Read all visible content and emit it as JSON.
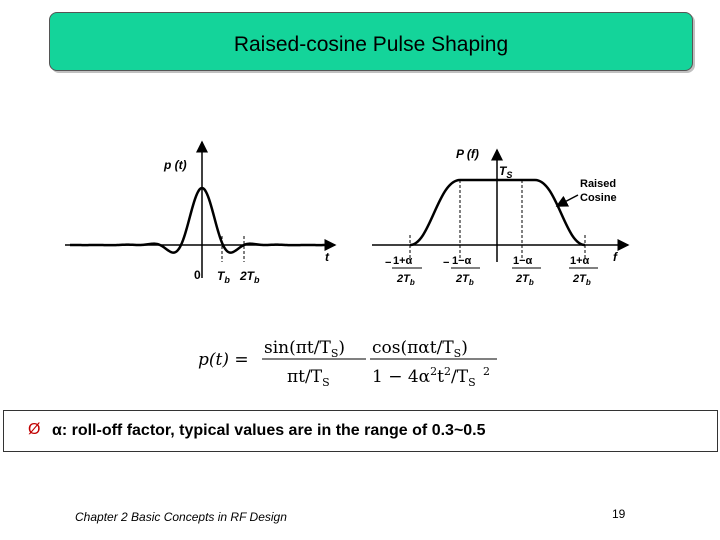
{
  "title": "Raised-cosine Pulse Shaping",
  "time_plot": {
    "ylabel": "p (t)",
    "xlabel": "t",
    "tick_0": "0",
    "tick_tb": "T",
    "tick_tb_sub": "b",
    "tick_2tb": "2T",
    "tick_2tb_sub": "b"
  },
  "freq_plot": {
    "ylabel": "P (f)",
    "xlabel": "f",
    "ts_label": "T",
    "ts_sub": "S",
    "annotation_line1": "Raised",
    "annotation_line2": "Cosine",
    "ticks": [
      {
        "num": "1+α",
        "den": "2T",
        "sub": "b",
        "sign": "−"
      },
      {
        "num": "1−α",
        "den": "2T",
        "sub": "b",
        "sign": "−"
      },
      {
        "num": "1−α",
        "den": "2T",
        "sub": "b",
        "sign": ""
      },
      {
        "num": "1+α",
        "den": "2T",
        "sub": "b",
        "sign": ""
      }
    ]
  },
  "formula": {
    "lhs": "p(t) =",
    "f1_num": "sin(πt/T",
    "f1_num_sub": "S",
    "f1_num_end": ")",
    "f1_den": "πt/T",
    "f1_den_sub": "S",
    "f2_num": "cos(παt/T",
    "f2_num_sub": "S",
    "f2_num_end": ")",
    "f2_den": "1 − 4α",
    "f2_den_sup1": "2",
    "f2_den_mid": "t",
    "f2_den_sup2": "2",
    "f2_den_end": "/T",
    "f2_den_sub": "S",
    "f2_den_sup3": "2"
  },
  "bullet": {
    "marker": "Ø",
    "text": "α: roll-off factor, typical values are in the range of 0.3~0.5"
  },
  "footer": "Chapter 2 Basic Concepts in RF Design",
  "page_number": "19"
}
